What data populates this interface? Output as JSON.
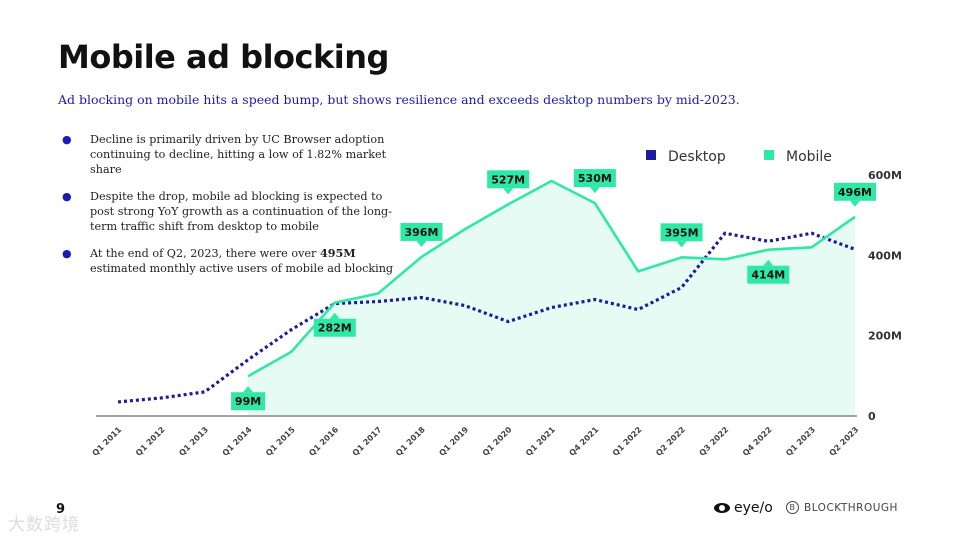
{
  "title": "Mobile ad blocking",
  "subtitle": "Ad blocking on mobile hits a speed bump, but shows resilience and exceeds desktop numbers by mid-2023.",
  "bullets": [
    {
      "text": "Decline is primarily driven by UC Browser adoption continuing to decline, hitting a low of 1.82% market share"
    },
    {
      "text": "Despite the drop, mobile ad blocking is expected to post strong YoY growth as a continuation of the long-term traffic shift from desktop to mobile"
    },
    {
      "text_before": "At the end of Q2, 2023, there were over ",
      "bold": "495M",
      "text_after": " estimated monthly active users of mobile ad blocking"
    }
  ],
  "bullet_symbol": "●",
  "page_number": "9",
  "watermark": "大数跨境",
  "logos": {
    "eyeo": "eye/o",
    "blockthrough": "BLOCKTHROUGH",
    "blockthrough_mark": "B"
  },
  "colors": {
    "desktop": "#1b1b9e",
    "mobile": "#2ee8a6",
    "mobile_fill": "#e6fbf3",
    "label_bg": "#2ee8a6"
  },
  "chart_data": {
    "type": "line",
    "title": "",
    "categories": [
      "Q1 2011",
      "Q1 2012",
      "Q1 2013",
      "Q1 2014",
      "Q1 2015",
      "Q1 2016",
      "Q1 2017",
      "Q1 2018",
      "Q1 2019",
      "Q1 2020",
      "Q1 2021",
      "Q4 2021",
      "Q1 2022",
      "Q2 2022",
      "Q3 2022",
      "Q4 2022",
      "Q1 2023",
      "Q2 2023"
    ],
    "ylim": [
      0,
      600
    ],
    "y_ticks": [
      0,
      200,
      400,
      600
    ],
    "y_tick_labels": [
      "0",
      "200M",
      "400M",
      "600M"
    ],
    "legend": [
      "Desktop",
      "Mobile"
    ],
    "legend_position": "top-right",
    "series": [
      {
        "name": "Desktop",
        "style": "dotted",
        "values": [
          35,
          45,
          60,
          140,
          215,
          280,
          285,
          295,
          275,
          235,
          270,
          290,
          265,
          320,
          455,
          435,
          455,
          415
        ]
      },
      {
        "name": "Mobile",
        "style": "solid-area",
        "values": [
          null,
          null,
          null,
          99,
          160,
          282,
          305,
          396,
          465,
          527,
          585,
          530,
          360,
          395,
          390,
          414,
          420,
          496
        ]
      }
    ],
    "annotations": [
      {
        "text": "99M",
        "category": "Q1 2014",
        "value": 99,
        "position": "below"
      },
      {
        "text": "282M",
        "category": "Q1 2016",
        "value": 282,
        "position": "below"
      },
      {
        "text": "396M",
        "category": "Q1 2018",
        "value": 396,
        "position": "above"
      },
      {
        "text": "527M",
        "category": "Q1 2020",
        "value": 527,
        "position": "above"
      },
      {
        "text": "530M",
        "category": "Q4 2021",
        "value": 530,
        "position": "above"
      },
      {
        "text": "395M",
        "category": "Q2 2022",
        "value": 395,
        "position": "above"
      },
      {
        "text": "414M",
        "category": "Q4 2022",
        "value": 414,
        "position": "below"
      },
      {
        "text": "496M",
        "category": "Q2 2023",
        "value": 496,
        "position": "above"
      }
    ]
  }
}
